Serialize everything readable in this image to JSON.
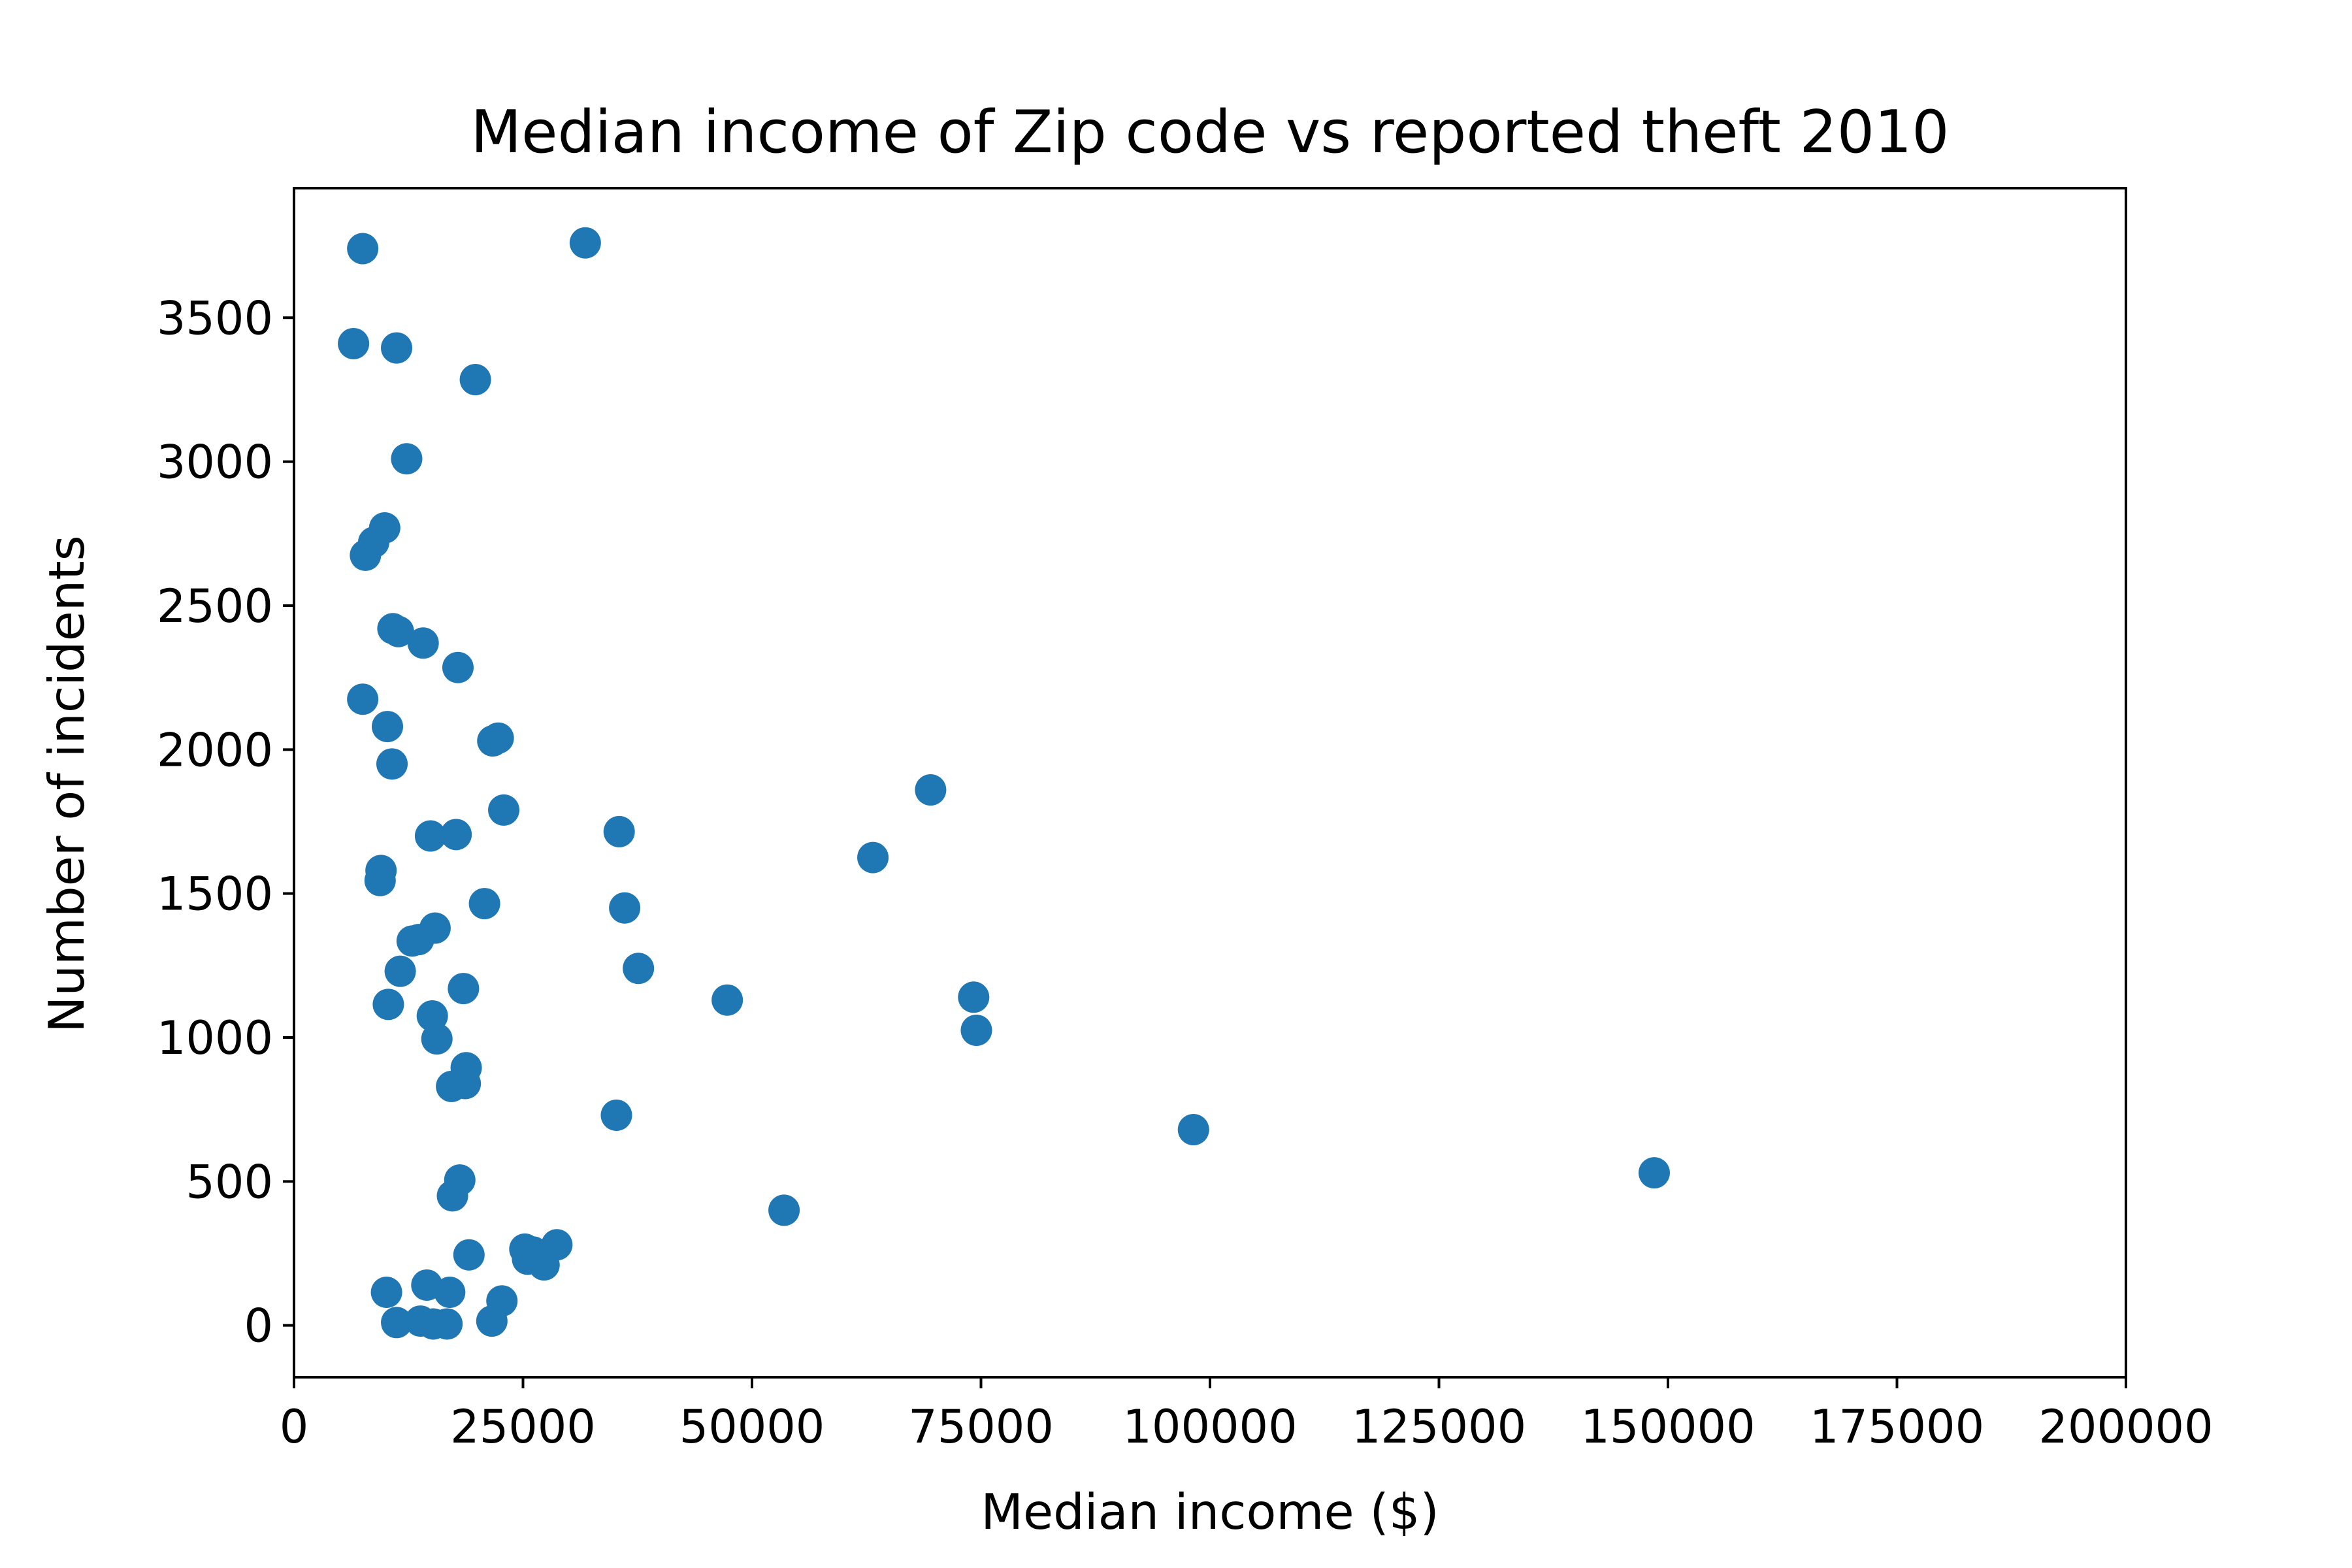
{
  "chart_data": {
    "type": "scatter",
    "title": "Median income of Zip code vs reported theft 2010",
    "xlabel": "Median income ($)",
    "ylabel": "Number of incidents",
    "xlim": [
      0,
      200000
    ],
    "ylim": [
      -180,
      3950
    ],
    "xticks": [
      0,
      25000,
      50000,
      75000,
      100000,
      125000,
      150000,
      175000,
      200000
    ],
    "yticks": [
      0,
      500,
      1000,
      1500,
      2000,
      2500,
      3000,
      3500
    ],
    "grid": false,
    "color": "#1f77b4",
    "points": [
      [
        6500,
        3410
      ],
      [
        7500,
        3740
      ],
      [
        31800,
        3760
      ],
      [
        11200,
        3395
      ],
      [
        19800,
        3285
      ],
      [
        12300,
        3010
      ],
      [
        9900,
        2770
      ],
      [
        8700,
        2720
      ],
      [
        7800,
        2675
      ],
      [
        10800,
        2420
      ],
      [
        11400,
        2410
      ],
      [
        14100,
        2370
      ],
      [
        17900,
        2285
      ],
      [
        7500,
        2175
      ],
      [
        10200,
        2080
      ],
      [
        10700,
        1950
      ],
      [
        21700,
        2030
      ],
      [
        22300,
        2040
      ],
      [
        22900,
        1790
      ],
      [
        69500,
        1860
      ],
      [
        63200,
        1625
      ],
      [
        35500,
        1715
      ],
      [
        14900,
        1700
      ],
      [
        17700,
        1705
      ],
      [
        9500,
        1580
      ],
      [
        9400,
        1545
      ],
      [
        20800,
        1465
      ],
      [
        36100,
        1450
      ],
      [
        15400,
        1380
      ],
      [
        12900,
        1335
      ],
      [
        13600,
        1340
      ],
      [
        11600,
        1230
      ],
      [
        37600,
        1240
      ],
      [
        47300,
        1130
      ],
      [
        74200,
        1140
      ],
      [
        74500,
        1025
      ],
      [
        10300,
        1115
      ],
      [
        15100,
        1075
      ],
      [
        18500,
        1170
      ],
      [
        15600,
        995
      ],
      [
        18800,
        895
      ],
      [
        17200,
        830
      ],
      [
        18700,
        840
      ],
      [
        35200,
        730
      ],
      [
        98200,
        680
      ],
      [
        18100,
        505
      ],
      [
        148500,
        530
      ],
      [
        17300,
        450
      ],
      [
        53500,
        400
      ],
      [
        19100,
        245
      ],
      [
        25200,
        265
      ],
      [
        26100,
        255
      ],
      [
        25500,
        230
      ],
      [
        27300,
        210
      ],
      [
        28700,
        280
      ],
      [
        10100,
        115
      ],
      [
        14500,
        140
      ],
      [
        17000,
        115
      ],
      [
        22700,
        85
      ],
      [
        11200,
        10
      ],
      [
        13800,
        15
      ],
      [
        15200,
        5
      ],
      [
        16700,
        5
      ],
      [
        21600,
        15
      ]
    ]
  }
}
